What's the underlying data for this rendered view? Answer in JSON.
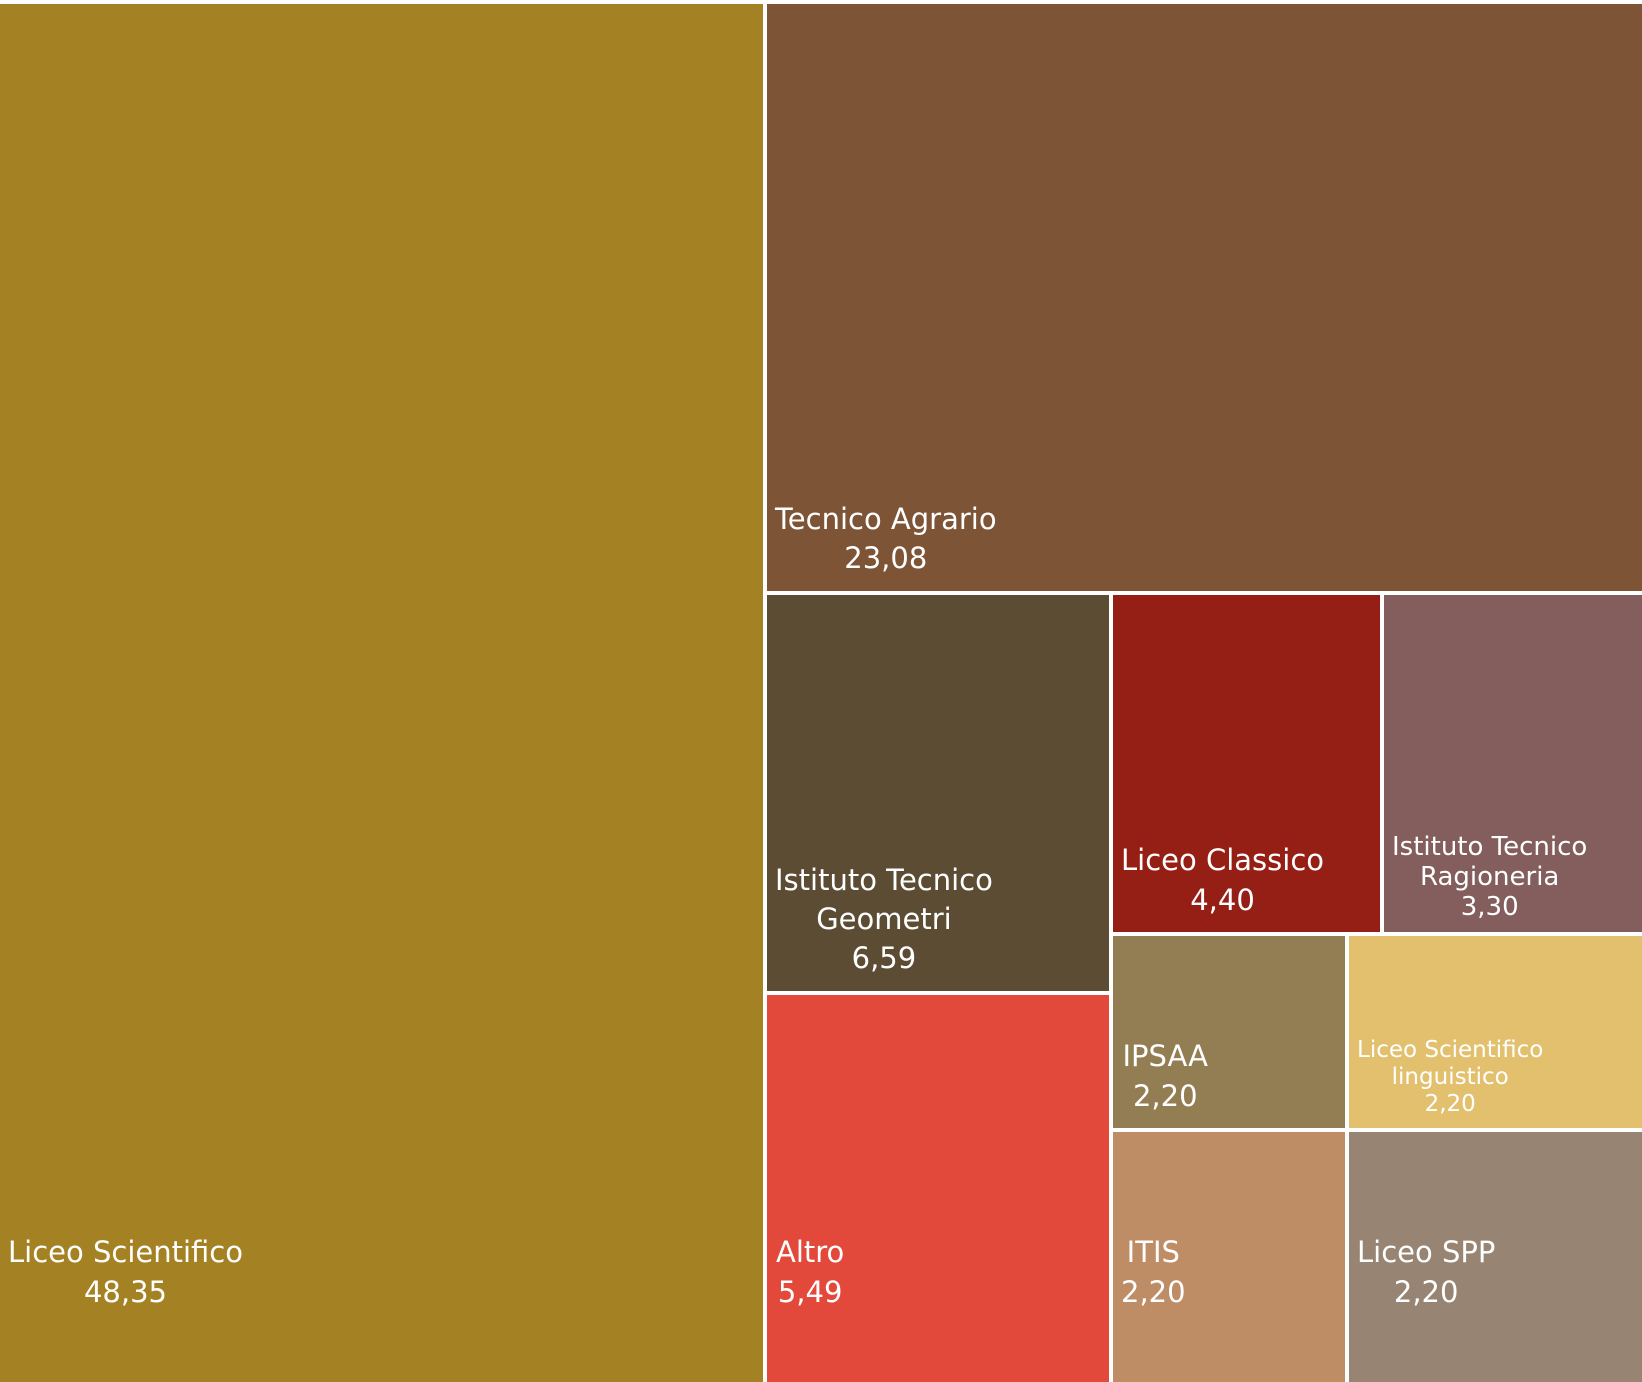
{
  "chart_data": {
    "type": "treemap",
    "title": "",
    "items": [
      {
        "name": "Liceo Scientifico",
        "value": "48,35",
        "numeric_value": 48.35,
        "color": "#A48224"
      },
      {
        "name": "Tecnico Agrario",
        "value": "23,08",
        "numeric_value": 23.08,
        "color": "#7D5436"
      },
      {
        "name": "Istituto Tecnico Geometri",
        "value": "6,59",
        "numeric_value": 6.59,
        "color": "#5C4C34"
      },
      {
        "name": "Altro",
        "value": "5,49",
        "numeric_value": 5.49,
        "color": "#E2493A"
      },
      {
        "name": "Liceo Classico",
        "value": "4,40",
        "numeric_value": 4.4,
        "color": "#961F15"
      },
      {
        "name": "Istituto Tecnico Ragioneria",
        "value": "3,30",
        "numeric_value": 3.3,
        "color": "#835E5C"
      },
      {
        "name": "IPSAA",
        "value": "2,20",
        "numeric_value": 2.2,
        "color": "#937D52"
      },
      {
        "name": "Liceo Scientifico linguistico",
        "value": "2,20",
        "numeric_value": 2.2,
        "color": "#E2C06E"
      },
      {
        "name": "ITIS",
        "value": "2,20",
        "numeric_value": 2.2,
        "color": "#BE8C65"
      },
      {
        "name": "Liceo SPP",
        "value": "2,20",
        "numeric_value": 2.2,
        "color": "#978472"
      }
    ]
  }
}
